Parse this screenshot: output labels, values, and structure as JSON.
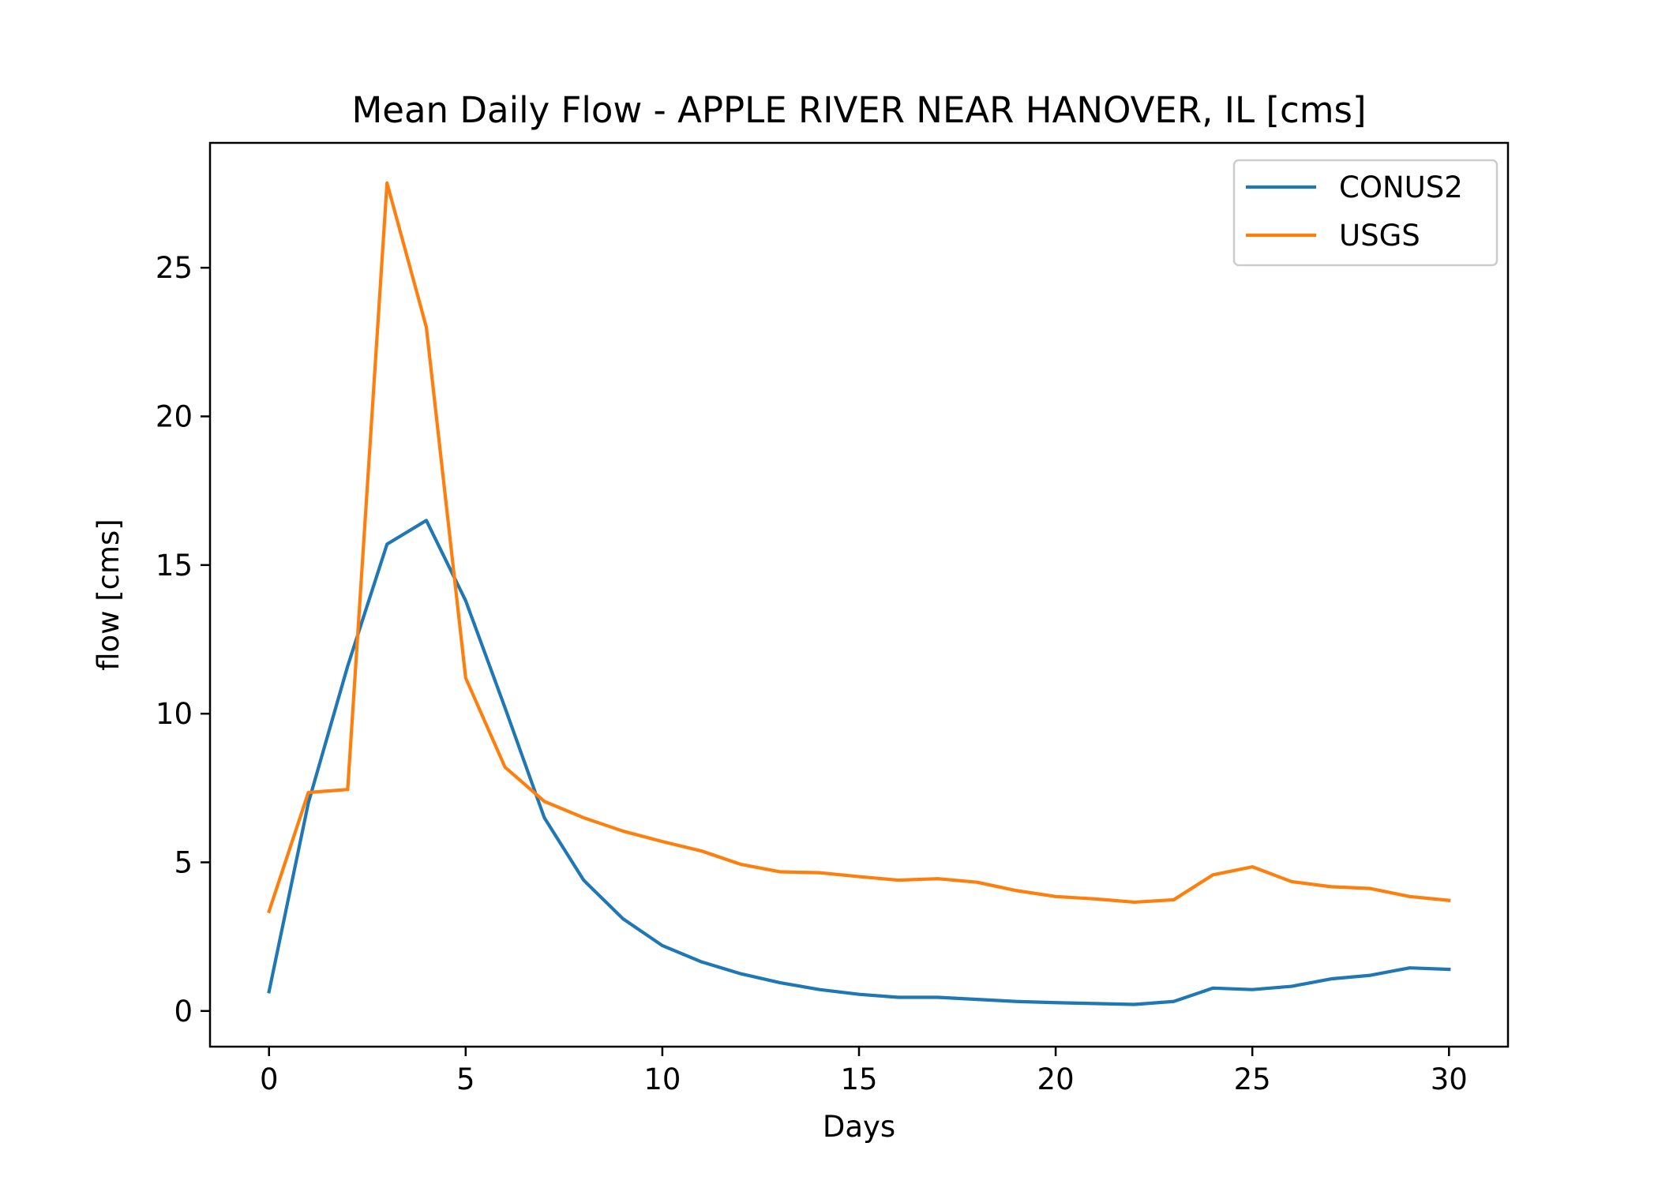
{
  "chart_data": {
    "type": "line",
    "title": "Mean Daily Flow - APPLE RIVER NEAR HANOVER, IL [cms]",
    "xlabel": "Days",
    "ylabel": "flow [cms]",
    "xlim": [
      -1.5,
      31.5
    ],
    "ylim": [
      -1.2,
      29.2
    ],
    "xticks": [
      0,
      5,
      10,
      15,
      20,
      25,
      30
    ],
    "yticks": [
      0,
      5,
      10,
      15,
      20,
      25
    ],
    "grid": false,
    "legend_position": "top-right",
    "x": [
      0,
      1,
      2,
      3,
      4,
      5,
      6,
      7,
      8,
      9,
      10,
      11,
      12,
      13,
      14,
      15,
      16,
      17,
      18,
      19,
      20,
      21,
      22,
      23,
      24,
      25,
      26,
      27,
      28,
      29,
      30
    ],
    "series": [
      {
        "name": "CONUS2",
        "color": "#1f77b4",
        "values": [
          0.65,
          7.0,
          11.6,
          15.7,
          16.5,
          13.8,
          10.2,
          6.5,
          4.4,
          3.1,
          2.2,
          1.65,
          1.25,
          0.95,
          0.72,
          0.56,
          0.46,
          0.46,
          0.39,
          0.32,
          0.28,
          0.25,
          0.22,
          0.32,
          0.77,
          0.72,
          0.83,
          1.08,
          1.2,
          1.45,
          1.4
        ]
      },
      {
        "name": "USGS",
        "color": "#ff7f0e",
        "values": [
          3.35,
          7.35,
          7.45,
          27.85,
          23.0,
          11.2,
          8.2,
          7.05,
          6.5,
          6.05,
          5.7,
          5.38,
          4.93,
          4.68,
          4.65,
          4.52,
          4.4,
          4.45,
          4.33,
          4.05,
          3.85,
          3.77,
          3.66,
          3.74,
          4.58,
          4.85,
          4.35,
          4.18,
          4.12,
          3.85,
          3.72
        ]
      }
    ]
  }
}
